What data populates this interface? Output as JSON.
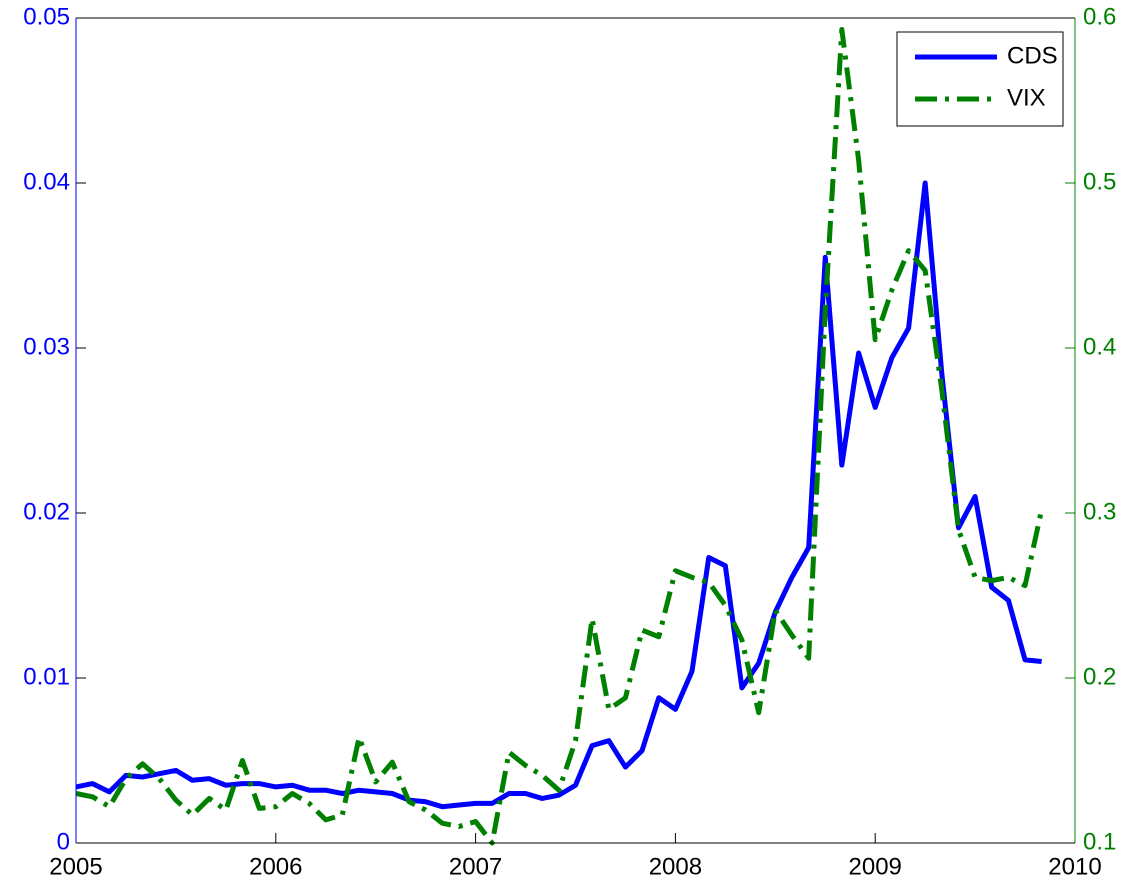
{
  "chart_data": {
    "type": "line",
    "x": [
      2005,
      2005.083,
      2005.167,
      2005.25,
      2005.333,
      2005.417,
      2005.5,
      2005.583,
      2005.667,
      2005.75,
      2005.833,
      2005.917,
      2006,
      2006.083,
      2006.167,
      2006.25,
      2006.333,
      2006.417,
      2006.5,
      2006.583,
      2006.667,
      2006.75,
      2006.833,
      2006.917,
      2007,
      2007.083,
      2007.167,
      2007.25,
      2007.333,
      2007.417,
      2007.5,
      2007.583,
      2007.667,
      2007.75,
      2007.833,
      2007.917,
      2008,
      2008.083,
      2008.167,
      2008.25,
      2008.333,
      2008.417,
      2008.5,
      2008.583,
      2008.667,
      2008.75,
      2008.833,
      2008.917,
      2009,
      2009.083,
      2009.167,
      2009.25,
      2009.333,
      2009.417,
      2009.5,
      2009.583,
      2009.667,
      2009.75,
      2009.833
    ],
    "series": [
      {
        "name": "CDS",
        "color": "#0000ff",
        "style": "solid",
        "values": [
          0.0034,
          0.0036,
          0.0031,
          0.0041,
          0.004,
          0.0042,
          0.0044,
          0.0038,
          0.0039,
          0.0035,
          0.0036,
          0.0036,
          0.0034,
          0.0035,
          0.0032,
          0.0032,
          0.003,
          0.0032,
          0.0031,
          0.003,
          0.0026,
          0.0025,
          0.0022,
          0.0023,
          0.0024,
          0.0024,
          0.003,
          0.003,
          0.0027,
          0.0029,
          0.0035,
          0.0059,
          0.0062,
          0.0046,
          0.0056,
          0.0088,
          0.0081,
          0.0104,
          0.0173,
          0.0168,
          0.0094,
          0.0109,
          0.014,
          0.0161,
          0.0179,
          0.0355,
          0.0229,
          0.0297,
          0.0264,
          0.0294,
          0.0312,
          0.04,
          0.0285,
          0.0191,
          0.021,
          0.0155,
          0.0147,
          0.0111,
          0.011
        ]
      },
      {
        "name": "VIX",
        "color": "#008000",
        "style": "dashdot",
        "axis": "y2",
        "values": [
          0.13,
          0.128,
          0.122,
          0.139,
          0.148,
          0.139,
          0.126,
          0.117,
          0.127,
          0.12,
          0.15,
          0.121,
          0.122,
          0.13,
          0.124,
          0.114,
          0.117,
          0.164,
          0.137,
          0.149,
          0.125,
          0.12,
          0.112,
          0.11,
          0.113,
          0.1,
          0.155,
          0.147,
          0.141,
          0.132,
          0.162,
          0.236,
          0.181,
          0.188,
          0.229,
          0.225,
          0.265,
          0.261,
          0.258,
          0.244,
          0.223,
          0.179,
          0.241,
          0.226,
          0.212,
          0.423,
          0.593,
          0.514,
          0.405,
          0.435,
          0.459,
          0.447,
          0.375,
          0.29,
          0.261,
          0.259,
          0.261,
          0.256,
          0.302
        ]
      }
    ],
    "xlim": [
      2005,
      2010
    ],
    "xticks": [
      2005,
      2006,
      2007,
      2008,
      2009,
      2010
    ],
    "ylim": [
      0,
      0.05
    ],
    "yticks": [
      0,
      0.01,
      0.02,
      0.03,
      0.04,
      0.05
    ],
    "y2lim": [
      0.1,
      0.6
    ],
    "y2ticks": [
      0.1,
      0.2,
      0.3,
      0.4,
      0.5,
      0.6
    ],
    "legend": "top-right"
  }
}
